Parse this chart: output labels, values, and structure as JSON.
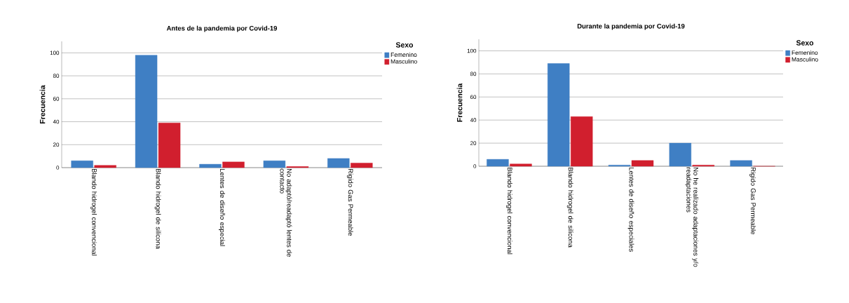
{
  "chart_data": [
    {
      "type": "bar",
      "title": "Antes de la pandemia por Covid-19",
      "ylabel": "Frecuencia",
      "legend_title": "Sexo",
      "legend": "right",
      "grid": "y",
      "categories": [
        "Blando hidrogel convencional",
        "Blando hidrogel de silicona",
        "Lentes de diseño especial",
        "No adaptó/readaptó lentes de contacto",
        "Rigido Gas Permeable"
      ],
      "series": [
        {
          "name": "Femenino",
          "color": "#3f7fc4",
          "values": [
            6,
            98,
            3,
            6,
            8
          ]
        },
        {
          "name": "Masculino",
          "color": "#d11f2e",
          "values": [
            2,
            39,
            5,
            1,
            4
          ]
        }
      ],
      "ylim": [
        0,
        110
      ],
      "yticks": [
        0,
        20,
        40,
        60,
        80,
        100
      ]
    },
    {
      "type": "bar",
      "title": "Durante la pandemia por Covid-19",
      "ylabel": "Frecuencia",
      "legend_title": "Sexo",
      "legend": "right",
      "grid": "y",
      "categories": [
        "Blando hidrogel convencional",
        "Blando hidrogel de silicona",
        "Lentes de diseño especiales",
        "No he realizado adaptaciones y/o readaptaciones",
        "Rigido Gas Permeable"
      ],
      "series": [
        {
          "name": "Femenino",
          "color": "#3f7fc4",
          "values": [
            6,
            89,
            1,
            20,
            5
          ]
        },
        {
          "name": "Masculino",
          "color": "#d11f2e",
          "values": [
            2,
            43,
            5,
            1,
            0
          ]
        }
      ],
      "ylim": [
        0,
        110
      ],
      "yticks": [
        0,
        20,
        40,
        60,
        80,
        100
      ]
    }
  ]
}
